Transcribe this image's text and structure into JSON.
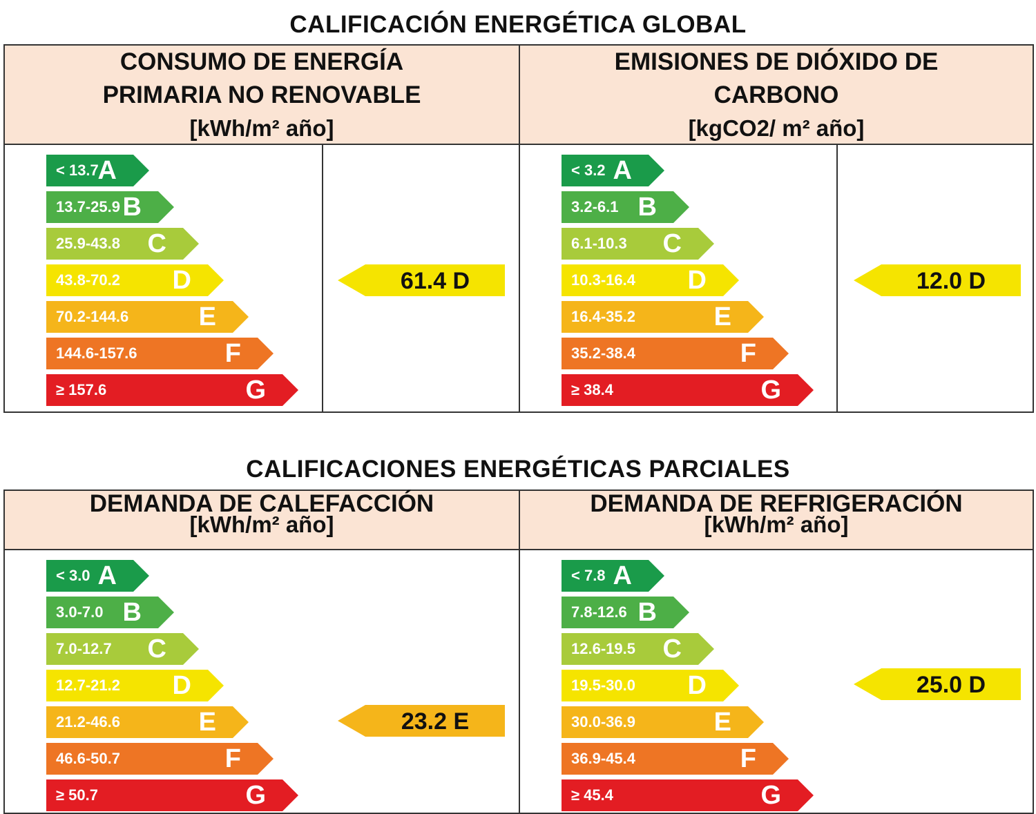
{
  "global_title": "CALIFICACIÓN ENERGÉTICA GLOBAL",
  "partial_title": "CALIFICACIONES ENERGÉTICAS PARCIALES",
  "colors": {
    "A": "#1a9b4a",
    "B": "#4daf47",
    "C": "#a8cb3b",
    "D": "#f5e400",
    "E": "#f5b51a",
    "F": "#ee7524",
    "G": "#e31d23",
    "header_bg": "#fbe4d4"
  },
  "panels": [
    {
      "title_lines": [
        "CONSUMO DE ENERGÍA",
        "PRIMARIA NO RENOVABLE"
      ],
      "unit": "[kWh/m² año]",
      "ranges": [
        "< 13.7",
        "13.7-25.9",
        "25.9-43.8",
        "43.8-70.2",
        "70.2-144.6",
        "144.6-157.6",
        "≥ 157.6"
      ],
      "letters": [
        "A",
        "B",
        "C",
        "D",
        "E",
        "F",
        "G"
      ],
      "result": {
        "value": "61.4",
        "letter": "D",
        "label": "61.4 D"
      }
    },
    {
      "title_lines": [
        "EMISIONES DE DIÓXIDO DE",
        "CARBONO"
      ],
      "unit": "[kgCO2/ m² año]",
      "ranges": [
        "< 3.2",
        "3.2-6.1",
        "6.1-10.3",
        "10.3-16.4",
        "16.4-35.2",
        "35.2-38.4",
        "≥ 38.4"
      ],
      "letters": [
        "A",
        "B",
        "C",
        "D",
        "E",
        "F",
        "G"
      ],
      "result": {
        "value": "12.0",
        "letter": "D",
        "label": "12.0 D"
      }
    },
    {
      "title_lines": [
        "DEMANDA DE CALEFACCIÓN"
      ],
      "unit": "[kWh/m² año]",
      "ranges": [
        "< 3.0",
        "3.0-7.0",
        "7.0-12.7",
        "12.7-21.2",
        "21.2-46.6",
        "46.6-50.7",
        "≥ 50.7"
      ],
      "letters": [
        "A",
        "B",
        "C",
        "D",
        "E",
        "F",
        "G"
      ],
      "result": {
        "value": "23.2",
        "letter": "E",
        "label": "23.2 E"
      }
    },
    {
      "title_lines": [
        "DEMANDA DE REFRIGERACIÓN"
      ],
      "unit": "[kWh/m² año]",
      "ranges": [
        "< 7.8",
        "7.8-12.6",
        "12.6-19.5",
        "19.5-30.0",
        "30.0-36.9",
        "36.9-45.4",
        "≥ 45.4"
      ],
      "letters": [
        "A",
        "B",
        "C",
        "D",
        "E",
        "F",
        "G"
      ],
      "result": {
        "value": "25.0",
        "letter": "D",
        "label": "25.0 D"
      }
    }
  ]
}
